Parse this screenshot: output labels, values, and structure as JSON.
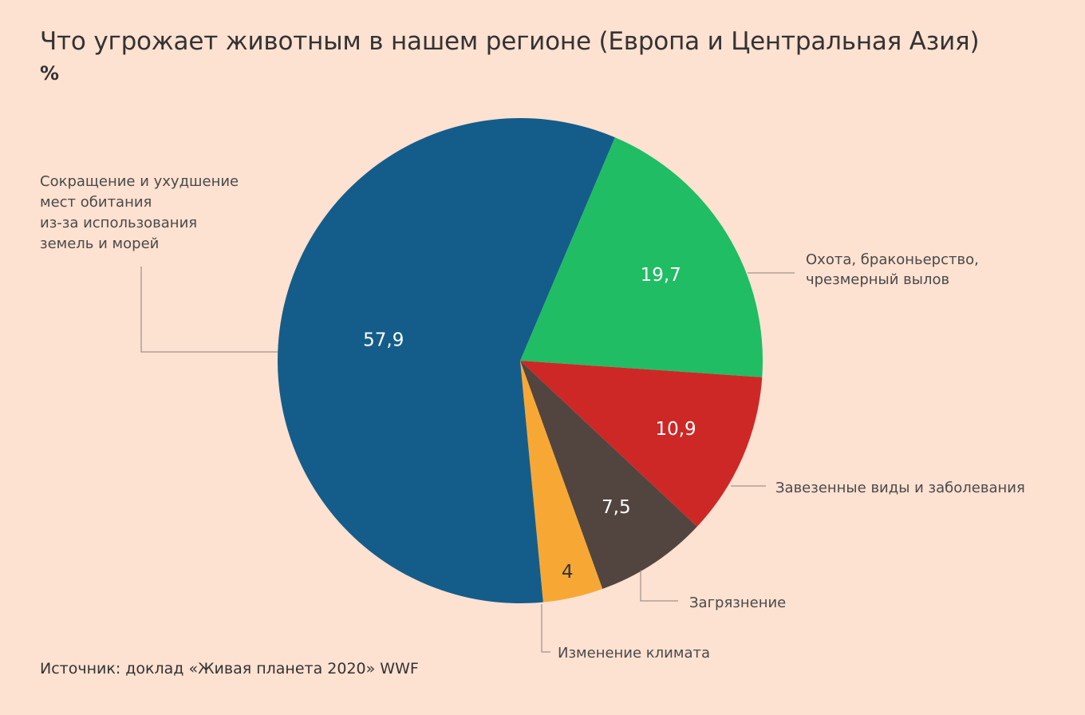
{
  "title": "Что угрожает животным в нашем регионе (Европа и Центральная Азия)",
  "unit": "%",
  "source": "Источник: доклад «Живая планета 2020» WWF",
  "chart_data": {
    "type": "pie",
    "title": "Что угрожает животным в нашем регионе (Европа и Центральная Азия)",
    "unit": "%",
    "slices": [
      {
        "label_lines": [
          "Охота, браконьерство,",
          "чрезмерный вылов"
        ],
        "value": 19.7,
        "value_text": "19,7",
        "color": "#20bd64",
        "text_color": "#ffffff"
      },
      {
        "label_lines": [
          "Завезенные виды и заболевания"
        ],
        "value": 10.9,
        "value_text": "10,9",
        "color": "#ce2826",
        "text_color": "#ffffff"
      },
      {
        "label_lines": [
          "Загрязнение"
        ],
        "value": 7.5,
        "value_text": "7,5",
        "color": "#524540",
        "text_color": "#ffffff"
      },
      {
        "label_lines": [
          "Изменение климата"
        ],
        "value": 4,
        "value_text": "4",
        "color": "#f7a834",
        "text_color": "#333333"
      },
      {
        "label_lines": [
          "Сокращение и ухудшение",
          "мест обитания",
          "из-за использования",
          "земель и морей"
        ],
        "value": 57.9,
        "value_text": "57,9",
        "color": "#145d8a",
        "text_color": "#ffffff"
      }
    ]
  }
}
